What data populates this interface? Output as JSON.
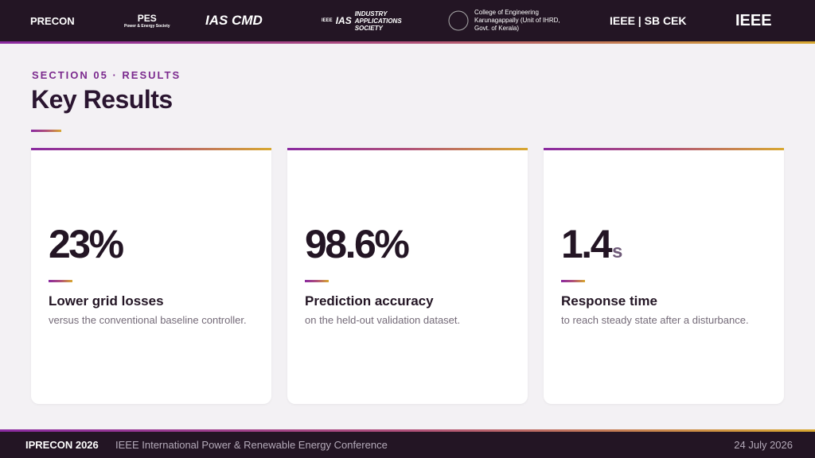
{
  "header": {
    "logos": [
      "PRECON",
      "PES",
      "Power & Energy Society",
      "IAS CMD",
      "IEEE",
      "IAS",
      "INDUSTRY APPLICATIONS SOCIETY",
      "College of Engineering Karunagappally (Unit of IHRD, Govt. of Kerala)",
      "IEEE | SB CEK",
      "IEEE"
    ]
  },
  "section": "SECTION 05 · RESULTS",
  "title": "Key Results",
  "cards": [
    {
      "value": "23%",
      "unit": null,
      "label": "Lower grid losses",
      "description": "versus the conventional baseline controller."
    },
    {
      "value": "98.6%",
      "unit": null,
      "label": "Prediction accuracy",
      "description": "on the held-out validation dataset."
    },
    {
      "value": "1.4",
      "unit": "s",
      "label": "Response time",
      "description": "to reach steady state after a disturbance."
    }
  ],
  "footer": {
    "event": "IPRECON 2026",
    "conference": "IEEE International Power & Renewable Energy Conference",
    "date": "24 July 2026"
  }
}
